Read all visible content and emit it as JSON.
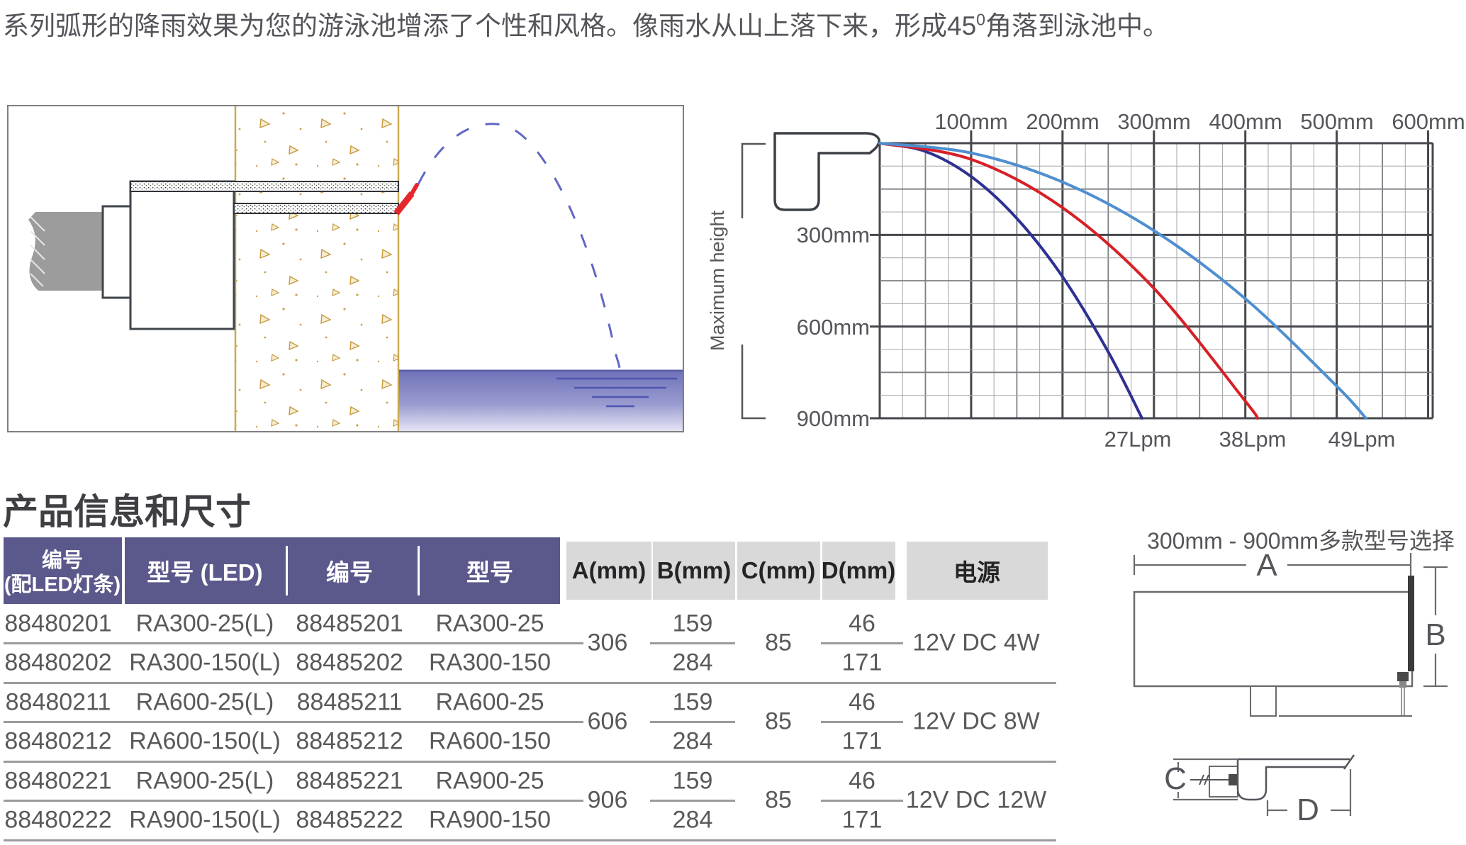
{
  "intro": {
    "part1": "系列弧形的降雨效果为您的游泳池增添了个性和风格。像雨水从山上落下来，形成45",
    "sup": "0",
    "part2": "角落到泳池中。"
  },
  "section_title": "产品信息和尺寸",
  "chart_data": {
    "type": "line",
    "title": "",
    "x_axis": {
      "label_side": "top",
      "ticks": [
        "100mm",
        "200mm",
        "300mm",
        "400mm",
        "500mm",
        "600mm"
      ],
      "range_mm": [
        0,
        605
      ],
      "major_step_mm": 100,
      "minor_step_mm": 25
    },
    "y_axis": {
      "label": "Maximum height",
      "ticks": [
        "300mm",
        "600mm",
        "900mm"
      ],
      "range_mm": [
        0,
        900
      ],
      "major_step_mm": 300,
      "minor_step_mm": 75
    },
    "grid": true,
    "legend_position": "below-curve-ends",
    "series": [
      {
        "name": "27Lpm",
        "color": "#2e3192",
        "points_mm": [
          [
            0,
            0
          ],
          [
            50,
            27
          ],
          [
            100,
            109
          ],
          [
            150,
            246
          ],
          [
            200,
            437
          ],
          [
            250,
            683
          ],
          [
            287,
            900
          ]
        ]
      },
      {
        "name": "38Lpm",
        "color": "#d71f26",
        "points_mm": [
          [
            0,
            0
          ],
          [
            100,
            53
          ],
          [
            200,
            211
          ],
          [
            300,
            475
          ],
          [
            400,
            844
          ],
          [
            413,
            900
          ]
        ]
      },
      {
        "name": "49Lpm",
        "color": "#4e8fd0",
        "points_mm": [
          [
            0,
            0
          ],
          [
            100,
            32
          ],
          [
            200,
            127
          ],
          [
            300,
            286
          ],
          [
            400,
            509
          ],
          [
            500,
            795
          ],
          [
            532,
            900
          ]
        ]
      }
    ]
  },
  "table": {
    "headers": {
      "col1_line1": "编号",
      "col1_line2": "(配LED灯条)",
      "col2": "型号 (LED)",
      "col3": "编号",
      "col4": "型号",
      "col5": "A(mm)",
      "col6": "B(mm)",
      "col7": "C(mm)",
      "col8": "D(mm)",
      "col9": "电源"
    },
    "groups": [
      {
        "rows": [
          [
            "88480201",
            "RA300-25(L)",
            "88485201",
            "RA300-25"
          ],
          [
            "88480202",
            "RA300-150(L)",
            "88485202",
            "RA300-150"
          ]
        ],
        "a": "306",
        "b": [
          "159",
          "284"
        ],
        "c": "85",
        "d": [
          "46",
          "171"
        ],
        "power": "12V DC 4W"
      },
      {
        "rows": [
          [
            "88480211",
            "RA600-25(L)",
            "88485211",
            "RA600-25"
          ],
          [
            "88480212",
            "RA600-150(L)",
            "88485212",
            "RA600-150"
          ]
        ],
        "a": "606",
        "b": [
          "159",
          "284"
        ],
        "c": "85",
        "d": [
          "46",
          "171"
        ],
        "power": "12V DC 8W"
      },
      {
        "rows": [
          [
            "88480221",
            "RA900-25(L)",
            "88485221",
            "RA900-25"
          ],
          [
            "88480222",
            "RA900-150(L)",
            "88485222",
            "RA900-150"
          ]
        ],
        "a": "906",
        "b": [
          "159",
          "284"
        ],
        "c": "85",
        "d": [
          "46",
          "171"
        ],
        "power": "12V DC 12W"
      }
    ]
  },
  "dims": {
    "caption": "300mm - 900mm多款型号选择",
    "a": "A",
    "b": "B",
    "c": "C",
    "d": "D"
  },
  "colors": {
    "header_purple": "#5b598b",
    "header_gray": "#d9d9d9",
    "body_text": "#58595b",
    "curve_navy": "#2e3192",
    "curve_red": "#d71f26",
    "curve_blue": "#4e8fd0",
    "nozzle_red": "#e5262c",
    "wall_tan": "#c9a952",
    "water_top": "#6f72b8",
    "water_bottom": "#e6e6f6"
  }
}
